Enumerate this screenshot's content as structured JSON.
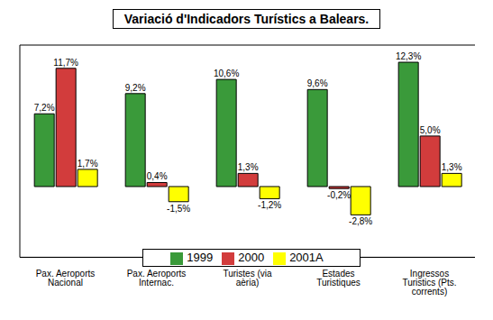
{
  "chart_data": {
    "type": "bar",
    "title": "Variació d'Indicadors Turístics a Balears.",
    "categories": [
      "Pax. Aeroports Nacional",
      "Pax. Aeroports Internac.",
      "Turistes (via aèria)",
      "Estades Turistiques",
      "Ingressos Turistics (Pts. corrents)"
    ],
    "series": [
      {
        "name": "1999",
        "color": "#3a9a3a",
        "values": [
          7.2,
          9.2,
          10.6,
          9.6,
          12.3
        ],
        "value_labels": [
          "7,2%",
          "9,2%",
          "10,6%",
          "9,6%",
          "12,3%"
        ]
      },
      {
        "name": "2000",
        "color": "#d23c3c",
        "values": [
          11.7,
          0.4,
          1.3,
          -0.2,
          5.0
        ],
        "value_labels": [
          "11,7%",
          "0,4%",
          "1,3%",
          "-0,2%",
          "5,0%"
        ]
      },
      {
        "name": "2001A",
        "color": "#ffff00",
        "values": [
          1.7,
          -1.5,
          -1.2,
          -2.8,
          1.3
        ],
        "value_labels": [
          "1,7%",
          "-1,5%",
          "-1,2%",
          "-2,8%",
          "1,3%"
        ]
      }
    ],
    "ylim": [
      -7,
      14
    ],
    "yticks": [
      0
    ],
    "grid": true,
    "legend": "bottom",
    "data_labels": true,
    "tick_labels": "x"
  }
}
